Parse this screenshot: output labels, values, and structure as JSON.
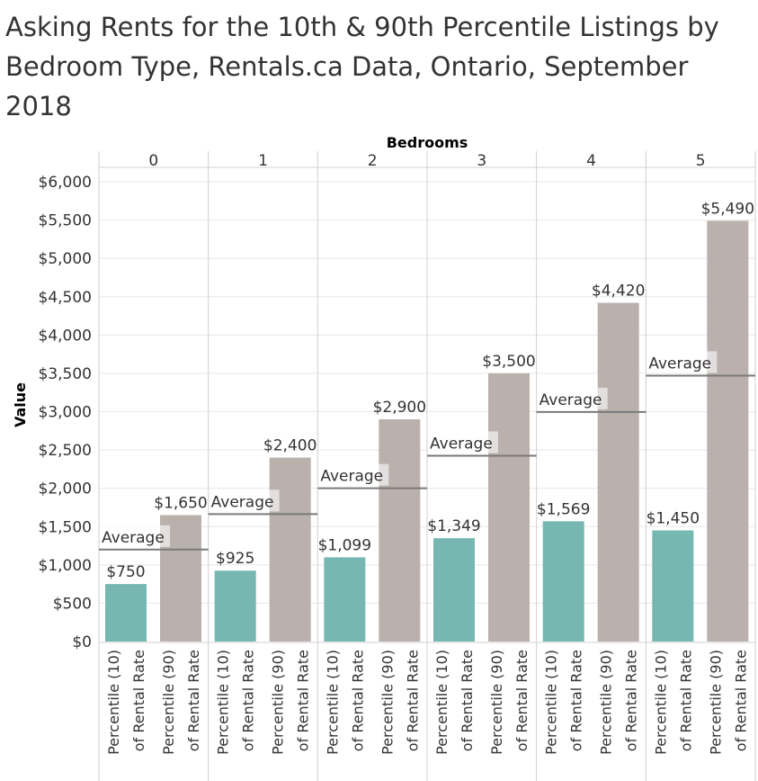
{
  "title_lines": [
    "Asking Rents for the 10th & 90th Percentile Listings by",
    "Bedroom Type, Rentals.ca Data, Ontario, September",
    "2018"
  ],
  "colors": {
    "percentile_10": "#76b7b2",
    "percentile_90": "#bab0ac",
    "average_line": "#7a7a7a",
    "grid": "#e8e8e8",
    "divider": "#d0d0d0"
  },
  "chart_data": {
    "type": "bar",
    "title": "Asking Rents for the 10th & 90th Percentile Listings by Bedroom Type, Rentals.ca Data, Ontario, September 2018",
    "column_header": "Bedrooms",
    "ylabel": "Value",
    "ylim": [
      0,
      6000
    ],
    "yticks": [
      "$0",
      "$500",
      "$1,000",
      "$1,500",
      "$2,000",
      "$2,500",
      "$3,000",
      "$3,500",
      "$4,000",
      "$4,500",
      "$5,000",
      "$5,500",
      "$6,000"
    ],
    "ytick_values": [
      0,
      500,
      1000,
      1500,
      2000,
      2500,
      3000,
      3500,
      4000,
      4500,
      5000,
      5500,
      6000
    ],
    "average_label": "Average",
    "categories": [
      [
        "Percentile (10)",
        "of Rental Rate"
      ],
      [
        "Percentile (90)",
        "of Rental Rate"
      ]
    ],
    "groups": [
      {
        "bedrooms": "0",
        "p10": 750,
        "p10_label": "$750",
        "p90": 1650,
        "p90_label": "$1,650",
        "average": 1200
      },
      {
        "bedrooms": "1",
        "p10": 925,
        "p10_label": "$925",
        "p90": 2400,
        "p90_label": "$2,400",
        "average": 1663
      },
      {
        "bedrooms": "2",
        "p10": 1099,
        "p10_label": "$1,099",
        "p90": 2900,
        "p90_label": "$2,900",
        "average": 2000
      },
      {
        "bedrooms": "3",
        "p10": 1349,
        "p10_label": "$1,349",
        "p90": 3500,
        "p90_label": "$3,500",
        "average": 2425
      },
      {
        "bedrooms": "4",
        "p10": 1569,
        "p10_label": "$1,569",
        "p90": 4420,
        "p90_label": "$4,420",
        "average": 2995
      },
      {
        "bedrooms": "5",
        "p10": 1450,
        "p10_label": "$1,450",
        "p90": 5490,
        "p90_label": "$5,490",
        "average": 3470
      }
    ]
  }
}
